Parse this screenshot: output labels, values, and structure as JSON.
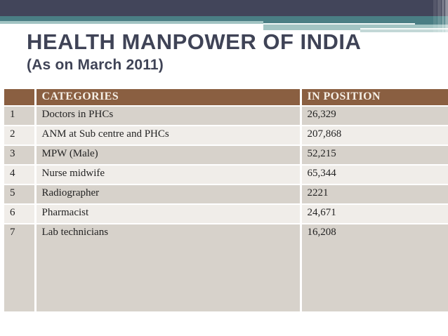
{
  "slide": {
    "title": "HEALTH MANPOWER OF INDIA",
    "subtitle": "(As on March 2011)"
  },
  "table": {
    "headers": {
      "index": "",
      "category": "CATEGORIES",
      "in_position": "IN POSITION"
    },
    "rows": [
      {
        "index": "1",
        "category": "Doctors in PHCs",
        "in_position": "26,329"
      },
      {
        "index": "2",
        "category": "ANM at Sub centre  and PHCs",
        "in_position": "207,868"
      },
      {
        "index": "3",
        "category": "MPW (Male)",
        "in_position": "52,215"
      },
      {
        "index": "4",
        "category": "Nurse midwife",
        "in_position": "65,344"
      },
      {
        "index": "5",
        "category": "Radiographer",
        "in_position": "2221"
      },
      {
        "index": "6",
        "category": "Pharmacist",
        "in_position": "24,671"
      },
      {
        "index": "7",
        "category": "Lab technicians",
        "in_position": "16,208"
      }
    ]
  },
  "theme": {
    "colors": {
      "navy": "#42455A",
      "teal": "#4A7E84",
      "light_teal": "#A2C4C3",
      "header_bg": "#8A5F41",
      "row_odd": "#D7D2CB",
      "row_even": "#F0EDE9",
      "title_color": "#3F4356"
    }
  }
}
